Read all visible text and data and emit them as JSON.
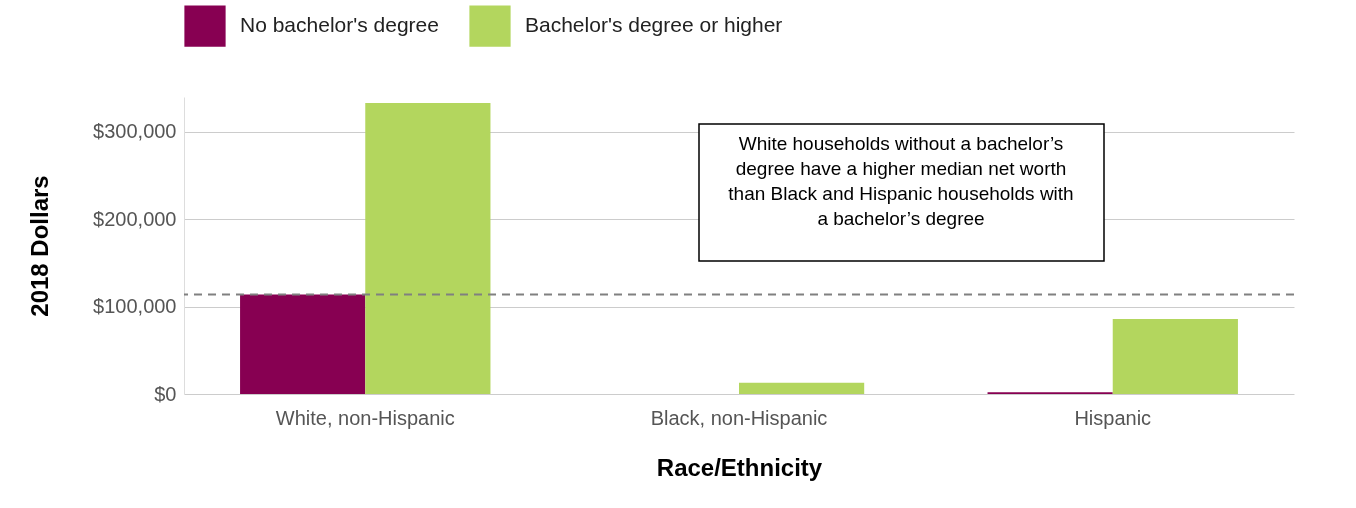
{
  "chart_data": {
    "type": "bar",
    "xlabel": "Race/Ethnicity",
    "ylabel": "2018 Dollars",
    "categories": [
      "White, non-Hispanic",
      "Black, non-Hispanic",
      "Hispanic"
    ],
    "series": [
      {
        "name": "No bachelor's degree",
        "color": "#870052",
        "values": [
          114000,
          0,
          2000
        ]
      },
      {
        "name": "Bachelor's degree or higher",
        "color": "#b3d65e",
        "values": [
          333000,
          13000,
          86000
        ]
      }
    ],
    "ylim": [
      0,
      340000
    ],
    "yticks": [
      {
        "value": 0,
        "label": "$0"
      },
      {
        "value": 100000,
        "label": "$100,000"
      },
      {
        "value": 200000,
        "label": "$200,000"
      },
      {
        "value": 300000,
        "label": "$300,000"
      }
    ],
    "grid": "y",
    "legend": "top",
    "ref_lines": [
      {
        "axis": "y",
        "value": 114000,
        "color": "#808080",
        "line_style": "dashed"
      }
    ],
    "annotations": [
      "White households without a bachelor’s degree have a higher median net worth than Black and Hispanic households with a bachelor’s degree"
    ]
  }
}
